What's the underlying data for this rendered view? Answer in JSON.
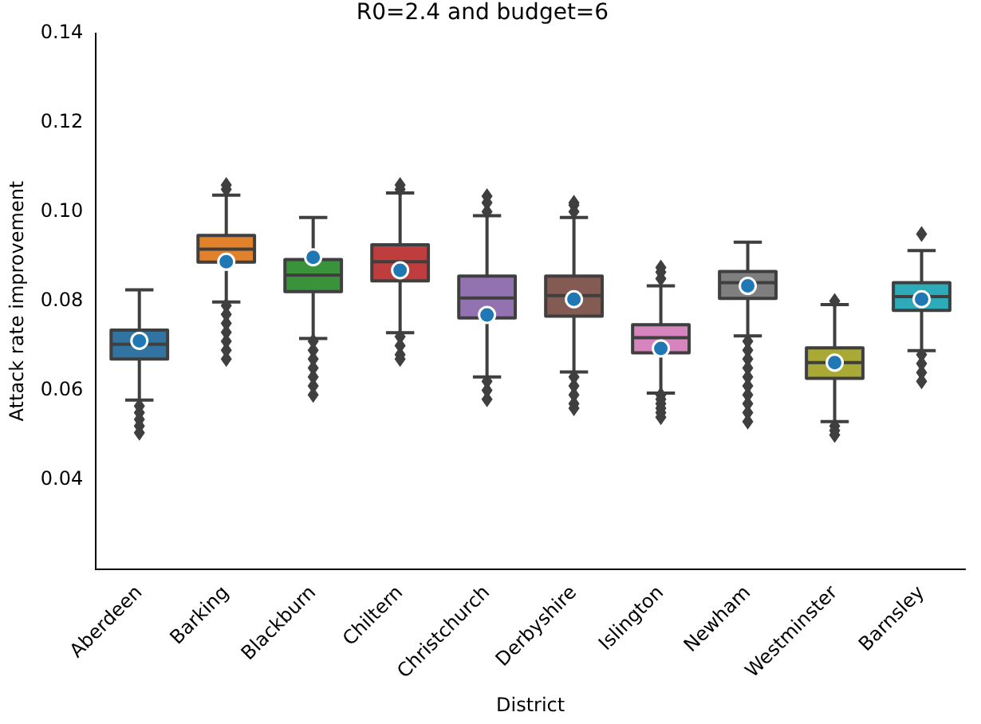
{
  "chart_data": {
    "type": "box",
    "title": "R0=2.4 and budget=6",
    "xlabel": "District",
    "ylabel": "Attack rate improvement",
    "categories": [
      "Aberdeen",
      "Barking",
      "Blackburn",
      "Chiltern",
      "Christchurch",
      "Derbyshire",
      "Islington",
      "Newham",
      "Westminster",
      "Barnsley"
    ],
    "colors": [
      "#3274a1",
      "#e1812c",
      "#3a923a",
      "#c03d3e",
      "#9372b2",
      "#845b53",
      "#d684bd",
      "#7f7f7f",
      "#a9aa35",
      "#2eabb8"
    ],
    "boxes": [
      {
        "low": 0.0578,
        "q1": 0.067,
        "median": 0.0703,
        "q3": 0.0735,
        "high": 0.0825,
        "mean": 0.0711,
        "outliers": [
          0.0565,
          0.055,
          0.0535,
          0.052,
          0.0505
        ]
      },
      {
        "low": 0.0798,
        "q1": 0.0887,
        "median": 0.0916,
        "q3": 0.0947,
        "high": 0.1037,
        "mean": 0.0888,
        "outliers": [
          0.105,
          0.106,
          0.079,
          0.077,
          0.075,
          0.073,
          0.071,
          0.069,
          0.067
        ]
      },
      {
        "low": 0.0716,
        "q1": 0.0821,
        "median": 0.0858,
        "q3": 0.0893,
        "high": 0.0987,
        "mean": 0.0898,
        "outliers": [
          0.071,
          0.069,
          0.067,
          0.065,
          0.063,
          0.061,
          0.059
        ]
      },
      {
        "low": 0.0729,
        "q1": 0.0845,
        "median": 0.0888,
        "q3": 0.0926,
        "high": 0.1042,
        "mean": 0.0869,
        "outliers": [
          0.105,
          0.106,
          0.072,
          0.07,
          0.068,
          0.067
        ]
      },
      {
        "low": 0.063,
        "q1": 0.0762,
        "median": 0.0807,
        "q3": 0.0856,
        "high": 0.0991,
        "mean": 0.0769,
        "outliers": [
          0.1,
          0.102,
          0.1035,
          0.062,
          0.06,
          0.058
        ]
      },
      {
        "low": 0.0641,
        "q1": 0.0766,
        "median": 0.0812,
        "q3": 0.0856,
        "high": 0.0987,
        "mean": 0.0804,
        "outliers": [
          0.1,
          0.1015,
          0.102,
          0.063,
          0.061,
          0.059,
          0.057,
          0.056
        ]
      },
      {
        "low": 0.0594,
        "q1": 0.0684,
        "median": 0.0718,
        "q3": 0.0747,
        "high": 0.0834,
        "mean": 0.0694,
        "outliers": [
          0.085,
          0.0865,
          0.0875,
          0.059,
          0.058,
          0.057,
          0.056,
          0.055,
          0.054
        ]
      },
      {
        "low": 0.0722,
        "q1": 0.0806,
        "median": 0.0841,
        "q3": 0.0866,
        "high": 0.0932,
        "mean": 0.0834,
        "outliers": [
          0.071,
          0.069,
          0.067,
          0.065,
          0.063,
          0.061,
          0.059,
          0.057,
          0.055,
          0.053
        ]
      },
      {
        "low": 0.053,
        "q1": 0.0627,
        "median": 0.0662,
        "q3": 0.0695,
        "high": 0.0792,
        "mean": 0.0662,
        "outliers": [
          0.08,
          0.052,
          0.051,
          0.05
        ]
      },
      {
        "low": 0.0689,
        "q1": 0.0779,
        "median": 0.081,
        "q3": 0.0841,
        "high": 0.0913,
        "mean": 0.0804,
        "outliers": [
          0.095,
          0.068,
          0.066,
          0.064,
          0.062
        ]
      }
    ],
    "ylim": [
      0.02,
      0.14
    ],
    "yticks": [
      {
        "value": 0.04,
        "label": "0.04"
      },
      {
        "value": 0.06,
        "label": "0.06"
      },
      {
        "value": 0.08,
        "label": "0.08"
      },
      {
        "value": 0.1,
        "label": "0.10"
      },
      {
        "value": 0.12,
        "label": "0.12"
      },
      {
        "value": 0.14,
        "label": "0.14"
      }
    ]
  }
}
